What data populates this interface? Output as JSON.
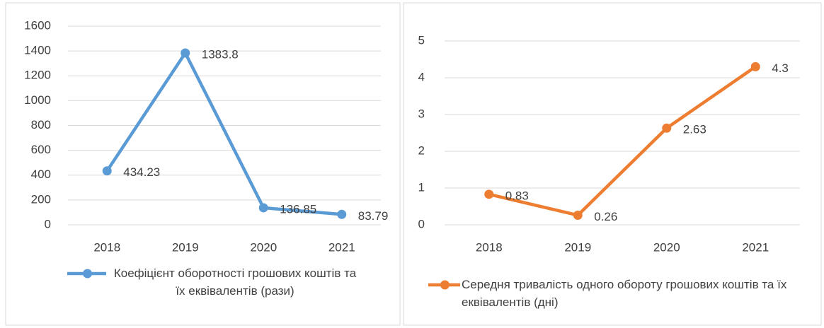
{
  "chart_data": [
    {
      "type": "line",
      "categories": [
        "2018",
        "2019",
        "2020",
        "2021"
      ],
      "series": [
        {
          "name": "Коефіцієнт оборотності грошових коштів та їх еквівалентів (рази)",
          "color": "#5b9bd5",
          "values": [
            434.23,
            1383.8,
            136.85,
            83.79
          ]
        }
      ],
      "ylim": [
        0,
        1600
      ],
      "yticks": [
        0,
        200,
        400,
        600,
        800,
        1000,
        1200,
        1400,
        1600
      ],
      "grid": true,
      "legend": "bottom"
    },
    {
      "type": "line",
      "categories": [
        "2018",
        "2019",
        "2020",
        "2021"
      ],
      "series": [
        {
          "name": "Середня тривалість одного обороту грошових коштів та їх еквівалентів (дні)",
          "color": "#ed7d31",
          "values": [
            0.83,
            0.26,
            2.63,
            4.3
          ]
        }
      ],
      "ylim": [
        0,
        5
      ],
      "yticks": [
        0,
        1,
        2,
        3,
        4,
        5
      ],
      "grid": true,
      "legend": "bottom"
    }
  ]
}
